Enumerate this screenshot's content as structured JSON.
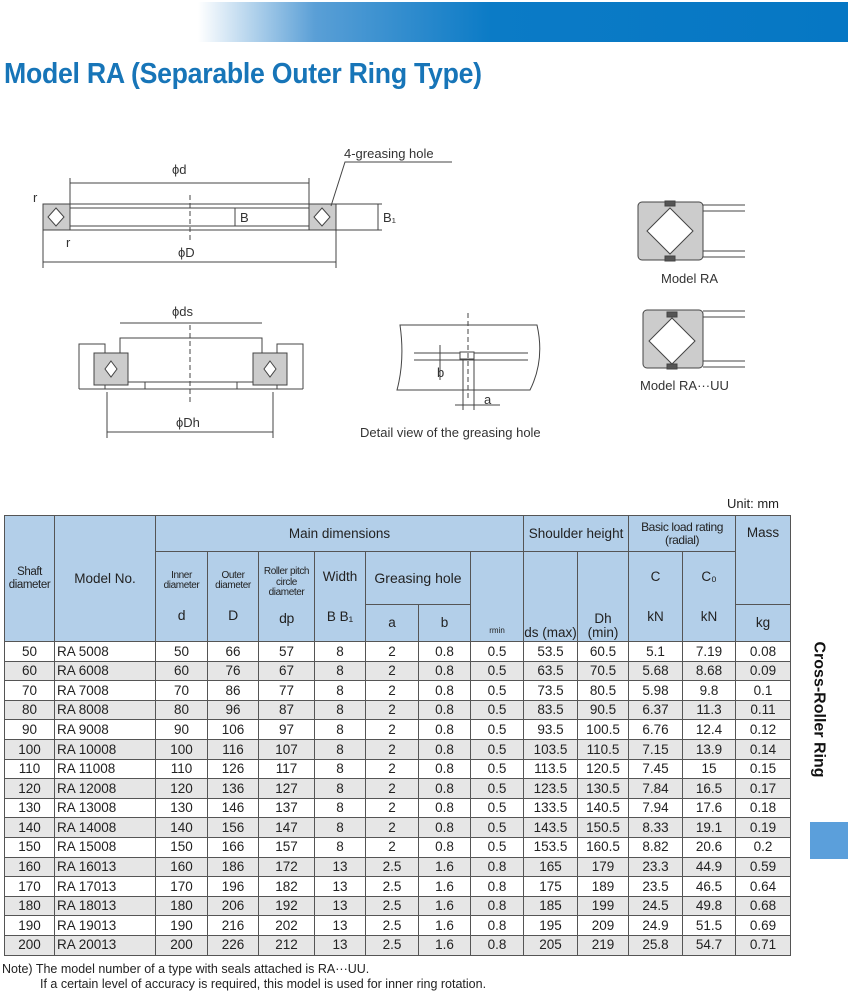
{
  "header": {
    "title": "Model RA (Separable Outer Ring Type)",
    "banner_color": "#0677c4",
    "title_color": "#1775b8"
  },
  "diagrams": {
    "main": {
      "phi_d": "ϕd",
      "phi_D": "ϕD",
      "B": "B",
      "B1": "B₁",
      "r_top": "r",
      "r_bottom": "r",
      "greasing_hole": "4-greasing hole"
    },
    "shoulder": {
      "phi_ds": "ϕds",
      "phi_Dh": "ϕDh"
    },
    "detail": {
      "b": "b",
      "a": "a",
      "caption": "Detail view of the greasing hole"
    },
    "model_ra_caption": "Model RA",
    "model_rauu_caption": "Model RA···UU"
  },
  "table": {
    "unit": "Unit: mm",
    "headers": {
      "shaft": "Shaft diameter",
      "model": "Model No.",
      "main": "Main dimensions",
      "shoulder": "Shoulder height",
      "load": "Basic load rating (radial)",
      "mass": "Mass",
      "inner": "Inner diameter",
      "outer": "Outer diameter",
      "roller": "Roller pitch circle diameter",
      "width": "Width",
      "greasing": "Greasing hole",
      "d": "d",
      "D": "D",
      "dp": "dp",
      "BB1": "B B₁",
      "a": "a",
      "b": "b",
      "rmin": "rmin",
      "ds": "ds (max)",
      "Dh": "Dh (min)",
      "C": "C",
      "C0": "C₀",
      "kN1": "kN",
      "kN2": "kN",
      "kg": "kg"
    },
    "rows": [
      [
        "50",
        "RA 5008",
        "50",
        "66",
        "57",
        "8",
        "2",
        "0.8",
        "0.5",
        "53.5",
        "60.5",
        "5.1",
        "7.19",
        "0.08"
      ],
      [
        "60",
        "RA 6008",
        "60",
        "76",
        "67",
        "8",
        "2",
        "0.8",
        "0.5",
        "63.5",
        "70.5",
        "5.68",
        "8.68",
        "0.09"
      ],
      [
        "70",
        "RA 7008",
        "70",
        "86",
        "77",
        "8",
        "2",
        "0.8",
        "0.5",
        "73.5",
        "80.5",
        "5.98",
        "9.8",
        "0.1"
      ],
      [
        "80",
        "RA 8008",
        "80",
        "96",
        "87",
        "8",
        "2",
        "0.8",
        "0.5",
        "83.5",
        "90.5",
        "6.37",
        "11.3",
        "0.11"
      ],
      [
        "90",
        "RA 9008",
        "90",
        "106",
        "97",
        "8",
        "2",
        "0.8",
        "0.5",
        "93.5",
        "100.5",
        "6.76",
        "12.4",
        "0.12"
      ],
      [
        "100",
        "RA 10008",
        "100",
        "116",
        "107",
        "8",
        "2",
        "0.8",
        "0.5",
        "103.5",
        "110.5",
        "7.15",
        "13.9",
        "0.14"
      ],
      [
        "110",
        "RA 11008",
        "110",
        "126",
        "117",
        "8",
        "2",
        "0.8",
        "0.5",
        "113.5",
        "120.5",
        "7.45",
        "15",
        "0.15"
      ],
      [
        "120",
        "RA 12008",
        "120",
        "136",
        "127",
        "8",
        "2",
        "0.8",
        "0.5",
        "123.5",
        "130.5",
        "7.84",
        "16.5",
        "0.17"
      ],
      [
        "130",
        "RA 13008",
        "130",
        "146",
        "137",
        "8",
        "2",
        "0.8",
        "0.5",
        "133.5",
        "140.5",
        "7.94",
        "17.6",
        "0.18"
      ],
      [
        "140",
        "RA 14008",
        "140",
        "156",
        "147",
        "8",
        "2",
        "0.8",
        "0.5",
        "143.5",
        "150.5",
        "8.33",
        "19.1",
        "0.19"
      ],
      [
        "150",
        "RA 15008",
        "150",
        "166",
        "157",
        "8",
        "2",
        "0.8",
        "0.5",
        "153.5",
        "160.5",
        "8.82",
        "20.6",
        "0.2"
      ],
      [
        "160",
        "RA 16013",
        "160",
        "186",
        "172",
        "13",
        "2.5",
        "1.6",
        "0.8",
        "165",
        "179",
        "23.3",
        "44.9",
        "0.59"
      ],
      [
        "170",
        "RA 17013",
        "170",
        "196",
        "182",
        "13",
        "2.5",
        "1.6",
        "0.8",
        "175",
        "189",
        "23.5",
        "46.5",
        "0.64"
      ],
      [
        "180",
        "RA 18013",
        "180",
        "206",
        "192",
        "13",
        "2.5",
        "1.6",
        "0.8",
        "185",
        "199",
        "24.5",
        "49.8",
        "0.68"
      ],
      [
        "190",
        "RA 19013",
        "190",
        "216",
        "202",
        "13",
        "2.5",
        "1.6",
        "0.8",
        "195",
        "209",
        "24.9",
        "51.5",
        "0.69"
      ],
      [
        "200",
        "RA 20013",
        "200",
        "226",
        "212",
        "13",
        "2.5",
        "1.6",
        "0.8",
        "205",
        "219",
        "25.8",
        "54.7",
        "0.71"
      ]
    ]
  },
  "note": {
    "line1": "Note) The model number of a type with seals attached is RA···UU.",
    "line2": "If a certain level of accuracy is required, this model is used for inner ring rotation."
  },
  "side_tab": {
    "label": "Cross-Roller Ring",
    "accent": "#5b9fdb"
  }
}
